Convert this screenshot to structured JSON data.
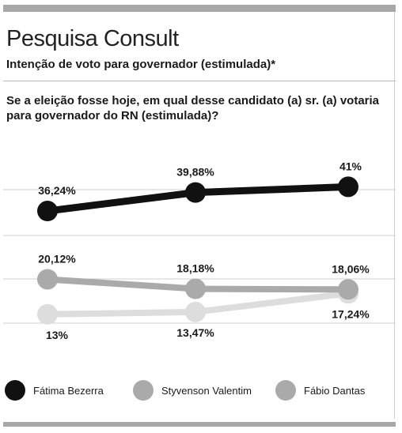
{
  "header": {
    "title": "Pesquisa Consult",
    "subtitle": "Intenção de voto para governador (estimulada)*"
  },
  "question": "Se a eleição fosse hoje, em qual desse candidato (a) sr. (a) votaria para governador do RN (estimulada)?",
  "chart_data": {
    "type": "line",
    "series": [
      {
        "name": "Fátima Bezerra",
        "color": "#111111",
        "values": [
          36.24,
          39.88,
          41
        ],
        "labels": [
          "36,24%",
          "39,88%",
          "41%"
        ]
      },
      {
        "name": "Styvenson Valentim",
        "color": "#aaaaaa",
        "values": [
          20.12,
          18.18,
          18.06
        ],
        "labels": [
          "20,12%",
          "18,18%",
          "18,06%"
        ]
      },
      {
        "name": "Fábio Dantas",
        "color": "#dddddd",
        "values": [
          13,
          13.47,
          17.24
        ],
        "labels": [
          "13%",
          "13,47%",
          "17,24%"
        ]
      }
    ],
    "grid": true,
    "legend": "bottom"
  },
  "legend": {
    "items": [
      {
        "label": "Fátima Bezerra",
        "color": "#111111"
      },
      {
        "label": "Styvenson Valentim",
        "color": "#aaaaaa"
      },
      {
        "label": "Fábio Dantas",
        "color": "#aaaaaa"
      }
    ]
  }
}
